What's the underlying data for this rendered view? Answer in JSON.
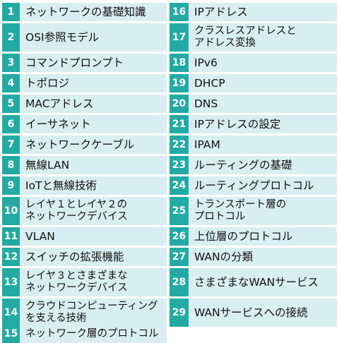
{
  "topics": {
    "left": [
      {
        "num": "1",
        "label": "ネットワークの基礎知識"
      },
      {
        "num": "2",
        "label": "OSI参照モデル"
      },
      {
        "num": "3",
        "label": "コマンドプロンプト"
      },
      {
        "num": "4",
        "label": "トポロジ"
      },
      {
        "num": "5",
        "label": "MACアドレス"
      },
      {
        "num": "6",
        "label": "イーサネット"
      },
      {
        "num": "7",
        "label": "ネットワークケーブル"
      },
      {
        "num": "8",
        "label": "無線LAN"
      },
      {
        "num": "9",
        "label": "IoTと無線技術"
      },
      {
        "num": "10",
        "label_line1": "レイヤ１とレイヤ２の",
        "label_line2": "ネットワークデバイス"
      },
      {
        "num": "11",
        "label": "VLAN"
      },
      {
        "num": "12",
        "label": "スイッチの拡張機能"
      },
      {
        "num": "13",
        "label_line1": "レイヤ３とさまざまな",
        "label_line2": "ネットワークデバイス"
      },
      {
        "num": "14",
        "label_line1": "クラウドコンピューティング",
        "label_line2": "を支える技術"
      },
      {
        "num": "15",
        "label": "ネットワーク層のプロトコル"
      }
    ],
    "right": [
      {
        "num": "16",
        "label": "IPアドレス"
      },
      {
        "num": "17",
        "label_line1": "クラスレスアドレスと",
        "label_line2": "アドレス変換"
      },
      {
        "num": "18",
        "label": "IPv6"
      },
      {
        "num": "19",
        "label": "DHCP"
      },
      {
        "num": "20",
        "label": "DNS"
      },
      {
        "num": "21",
        "label": "IPアドレスの設定"
      },
      {
        "num": "22",
        "label": "IPAM"
      },
      {
        "num": "23",
        "label": "ルーティングの基礎"
      },
      {
        "num": "24",
        "label": "ルーティングプロトコル"
      },
      {
        "num": "25",
        "label_line1": "トランスポート層の",
        "label_line2": "プロトコル"
      },
      {
        "num": "26",
        "label": "上位層のプロトコル"
      },
      {
        "num": "27",
        "label": "WANの分類"
      },
      {
        "num": "28",
        "label": "さまざまなWANサービス"
      },
      {
        "num": "29",
        "label": "WANサービスへの接続"
      }
    ]
  },
  "colors": {
    "number_background": "#22aaa3",
    "label_background": "#d9eef1",
    "number_text": "#ffffff",
    "label_text": "#111111"
  }
}
